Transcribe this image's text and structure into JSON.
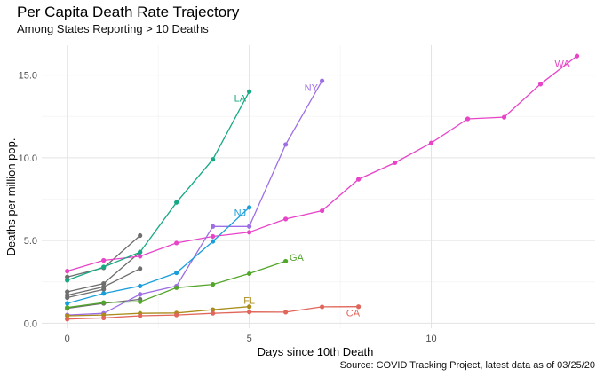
{
  "chart_data": {
    "type": "line",
    "title": "Per Capita Death Rate Trajectory",
    "subtitle": "Among States Reporting > 10 Deaths",
    "xlabel": "Days since 10th Death",
    "ylabel": "Deaths per million pop.",
    "caption": "Source: COVID Tracking Project, latest data as of 03/25/20",
    "xlim": [
      -0.7,
      14.5
    ],
    "ylim": [
      -0.3,
      16.8
    ],
    "x_ticks": [
      0,
      5,
      10
    ],
    "x_tick_labels": [
      "0",
      "5",
      "10"
    ],
    "y_ticks": [
      0,
      5,
      10,
      15
    ],
    "y_tick_labels": [
      "0.0",
      "5.0",
      "10.0",
      "15.0"
    ],
    "grid": true,
    "series": [
      {
        "name": "WA",
        "color": "#E744C8",
        "x": [
          0,
          1,
          2,
          3,
          4,
          5,
          6,
          7,
          8,
          9,
          10,
          11,
          12,
          13,
          14
        ],
        "y": [
          3.15,
          3.8,
          4.05,
          4.85,
          5.25,
          5.5,
          6.3,
          6.8,
          8.7,
          9.7,
          10.9,
          12.35,
          12.45,
          14.45,
          16.15
        ]
      },
      {
        "name": "NY",
        "color": "#9D6EE6",
        "x": [
          0,
          1,
          2,
          3,
          4,
          5,
          6,
          7
        ],
        "y": [
          0.5,
          0.6,
          1.75,
          2.25,
          5.85,
          5.85,
          10.8,
          14.65
        ]
      },
      {
        "name": "LA",
        "color": "#16A984",
        "x": [
          0,
          1,
          2,
          3,
          4,
          5
        ],
        "y": [
          2.6,
          3.4,
          4.3,
          7.3,
          9.9,
          14.0
        ]
      },
      {
        "name": "NJ",
        "color": "#1A9EDB",
        "x": [
          0,
          1,
          2,
          3,
          4,
          5
        ],
        "y": [
          1.2,
          1.8,
          2.25,
          3.05,
          4.95,
          7.0
        ]
      },
      {
        "name": "GA",
        "color": "#52A62A",
        "x": [
          0,
          1,
          2,
          3,
          4,
          5,
          6
        ],
        "y": [
          0.95,
          1.25,
          1.3,
          2.15,
          2.35,
          3.0,
          3.75
        ]
      },
      {
        "name": "FL",
        "color": "#A98C1B",
        "x": [
          0,
          1,
          2,
          3,
          4,
          5
        ],
        "y": [
          0.45,
          0.5,
          0.6,
          0.62,
          0.82,
          1.0
        ]
      },
      {
        "name": "CA",
        "color": "#E0655A",
        "x": [
          0,
          1,
          2,
          3,
          4,
          5,
          6,
          7,
          8
        ],
        "y": [
          0.25,
          0.32,
          0.45,
          0.5,
          0.6,
          0.68,
          0.67,
          0.99,
          1.0
        ]
      },
      {
        "name": "",
        "color": "#6E6E6E",
        "x": [
          0,
          1,
          2
        ],
        "y": [
          2.8,
          3.35,
          5.3
        ]
      },
      {
        "name": "",
        "color": "#6E6E6E",
        "x": [
          0,
          1,
          2
        ],
        "y": [
          1.9,
          2.4,
          4.3
        ]
      },
      {
        "name": "",
        "color": "#6E6E6E",
        "x": [
          0,
          1,
          2
        ],
        "y": [
          1.7,
          2.2,
          3.3
        ]
      },
      {
        "name": "",
        "color": "#6E6E6E",
        "x": [
          0,
          1
        ],
        "y": [
          1.55,
          2.05
        ]
      },
      {
        "name": "",
        "color": "#6E6E6E",
        "x": [
          0,
          1,
          2
        ],
        "y": [
          0.9,
          1.2,
          1.45
        ]
      }
    ],
    "labels": [
      {
        "text": "WA",
        "x": 13.6,
        "y": 15.7,
        "color": "#E744C8"
      },
      {
        "text": "NY",
        "x": 6.7,
        "y": 14.25,
        "color": "#9D6EE6"
      },
      {
        "text": "LA",
        "x": 4.75,
        "y": 13.6,
        "color": "#16A984"
      },
      {
        "text": "NJ",
        "x": 4.75,
        "y": 6.7,
        "color": "#1A9EDB"
      },
      {
        "text": "GA",
        "x": 6.3,
        "y": 4.0,
        "color": "#52A62A"
      },
      {
        "text": "FL",
        "x": 5.0,
        "y": 1.4,
        "color": "#A98C1B"
      },
      {
        "text": "CA",
        "x": 7.85,
        "y": 0.65,
        "color": "#E0655A"
      }
    ]
  }
}
